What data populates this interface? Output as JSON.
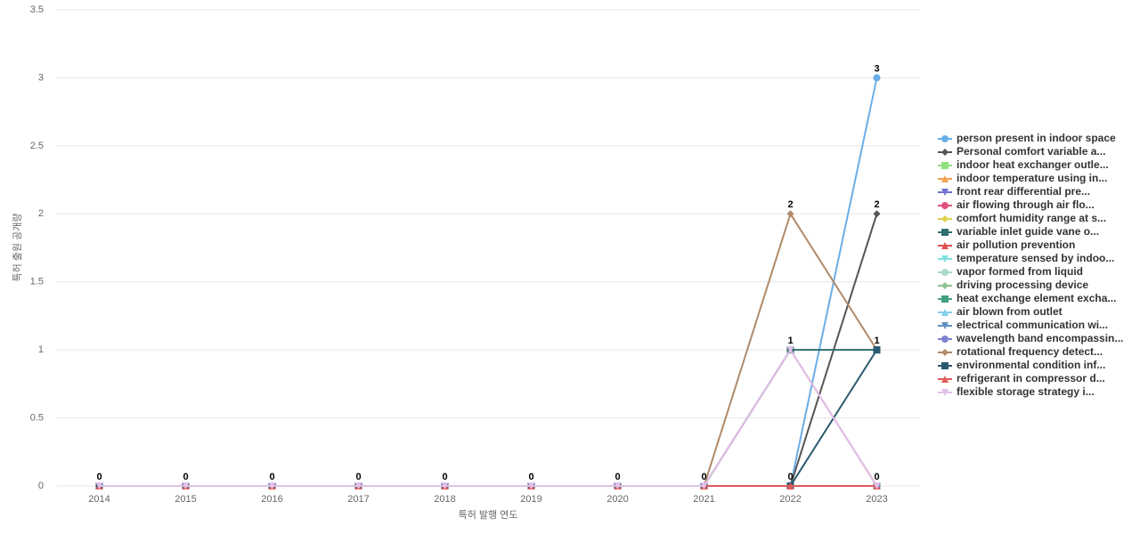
{
  "chart_data": {
    "type": "line",
    "x_label": "특허 발행 연도",
    "y_label": "특허 출원 공개량",
    "categories": [
      "2014",
      "2015",
      "2016",
      "2017",
      "2018",
      "2019",
      "2020",
      "2021",
      "2022",
      "2023"
    ],
    "ylim": [
      0,
      3.5
    ],
    "yticks": [
      0,
      0.5,
      1,
      1.5,
      2,
      2.5,
      3,
      3.5
    ],
    "grid": true,
    "series": [
      {
        "name": "person present in indoor space",
        "color": "#6aaee8",
        "marker": "circle",
        "values": [
          0,
          0,
          0,
          0,
          0,
          0,
          0,
          0,
          0,
          3
        ]
      },
      {
        "name": "Personal comfort variable a...",
        "color": "#555555",
        "marker": "diamond",
        "values": [
          0,
          0,
          0,
          0,
          0,
          0,
          0,
          0,
          0,
          2
        ]
      },
      {
        "name": "indoor heat exchanger outle...",
        "color": "#90e080",
        "marker": "square",
        "values": [
          0,
          0,
          0,
          0,
          0,
          0,
          0,
          0,
          0,
          0
        ]
      },
      {
        "name": "indoor temperature using in...",
        "color": "#f0a050",
        "marker": "triangle",
        "values": [
          0,
          0,
          0,
          0,
          0,
          0,
          0,
          0,
          0,
          0
        ]
      },
      {
        "name": "front rear differential pre...",
        "color": "#7070d0",
        "marker": "triangle-down",
        "values": [
          0,
          0,
          0,
          0,
          0,
          0,
          0,
          0,
          0,
          0
        ]
      },
      {
        "name": "air flowing through air flo...",
        "color": "#e0507a",
        "marker": "circle",
        "values": [
          0,
          0,
          0,
          0,
          0,
          0,
          0,
          0,
          1,
          0
        ]
      },
      {
        "name": "comfort humidity range at s...",
        "color": "#e0d050",
        "marker": "diamond",
        "values": [
          0,
          0,
          0,
          0,
          0,
          0,
          0,
          0,
          0,
          0
        ]
      },
      {
        "name": "variable inlet guide vane o...",
        "color": "#2f6f70",
        "marker": "square",
        "values": [
          0,
          0,
          0,
          0,
          0,
          0,
          0,
          0,
          1,
          1
        ]
      },
      {
        "name": "air pollution prevention",
        "color": "#e05050",
        "marker": "triangle",
        "values": [
          0,
          0,
          0,
          0,
          0,
          0,
          0,
          0,
          0,
          0
        ]
      },
      {
        "name": "temperature sensed by indoo...",
        "color": "#80e0e0",
        "marker": "triangle-down",
        "values": [
          0,
          0,
          0,
          0,
          0,
          0,
          0,
          0,
          0,
          0
        ]
      },
      {
        "name": "vapor formed from liquid",
        "color": "#a8dcc8",
        "marker": "circle",
        "values": [
          0,
          0,
          0,
          0,
          0,
          0,
          0,
          0,
          0,
          0
        ]
      },
      {
        "name": "driving processing device",
        "color": "#90c090",
        "marker": "diamond",
        "values": [
          0,
          0,
          0,
          0,
          0,
          0,
          0,
          0,
          0,
          0
        ]
      },
      {
        "name": "heat exchange element excha...",
        "color": "#40a080",
        "marker": "square",
        "values": [
          0,
          0,
          0,
          0,
          0,
          0,
          0,
          0,
          0,
          0
        ]
      },
      {
        "name": "air blown from outlet",
        "color": "#80d0e8",
        "marker": "triangle",
        "values": [
          0,
          0,
          0,
          0,
          0,
          0,
          0,
          0,
          0,
          0
        ]
      },
      {
        "name": "electrical communication wi...",
        "color": "#6090c0",
        "marker": "triangle-down",
        "values": [
          0,
          0,
          0,
          0,
          0,
          0,
          0,
          0,
          0,
          0
        ]
      },
      {
        "name": "wavelength band encompassin...",
        "color": "#8080d0",
        "marker": "circle",
        "values": [
          0,
          0,
          0,
          0,
          0,
          0,
          0,
          0,
          0,
          0
        ]
      },
      {
        "name": "rotational frequency detect...",
        "color": "#b08a6a",
        "marker": "diamond",
        "values": [
          0,
          0,
          0,
          0,
          0,
          0,
          0,
          0,
          2,
          1
        ]
      },
      {
        "name": "environmental condition inf...",
        "color": "#2a5a70",
        "marker": "square",
        "values": [
          0,
          0,
          0,
          0,
          0,
          0,
          0,
          0,
          0,
          1
        ]
      },
      {
        "name": "refrigerant in compressor d...",
        "color": "#e05a5a",
        "marker": "triangle",
        "values": [
          0,
          0,
          0,
          0,
          0,
          0,
          0,
          0,
          0,
          0
        ]
      },
      {
        "name": "flexible storage strategy i...",
        "color": "#e0c0e8",
        "marker": "triangle-down",
        "values": [
          0,
          0,
          0,
          0,
          0,
          0,
          0,
          0,
          1,
          0
        ]
      }
    ]
  }
}
